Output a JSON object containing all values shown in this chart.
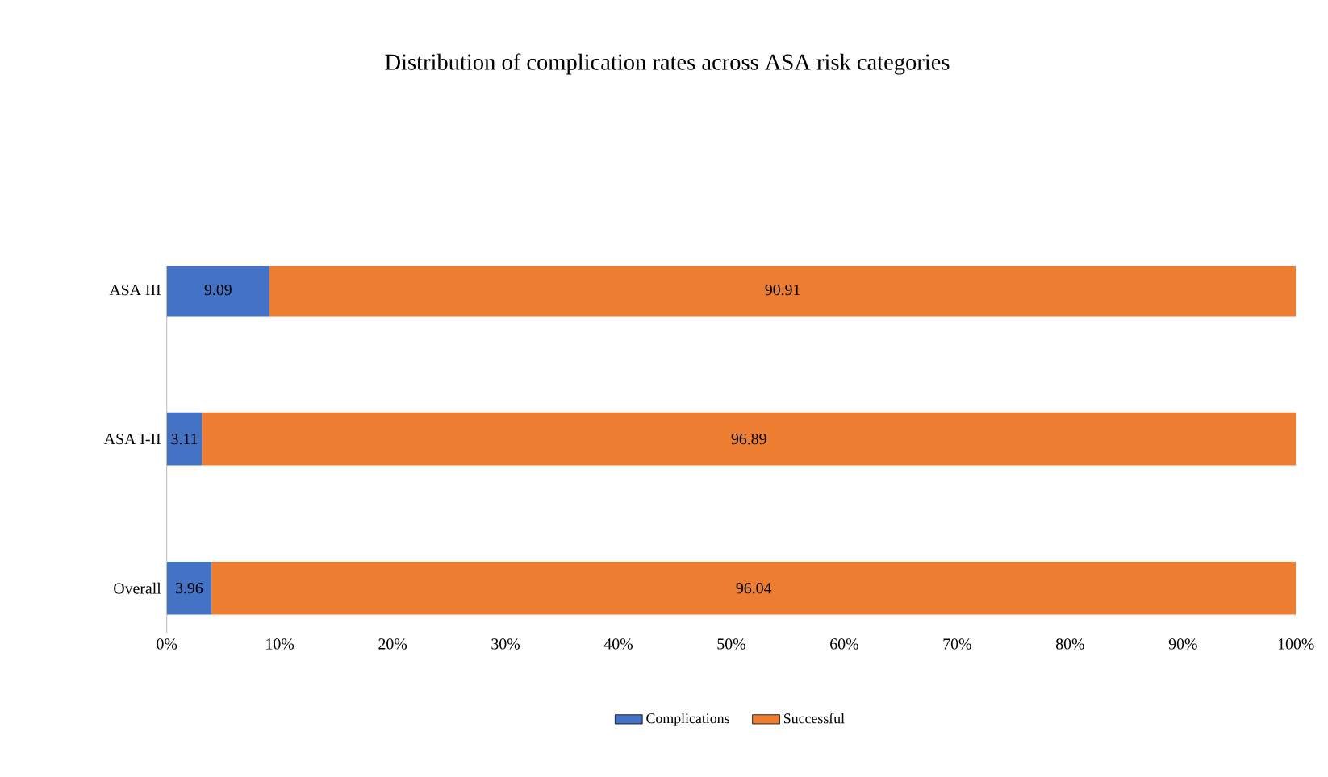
{
  "chart_data": {
    "type": "bar",
    "orientation": "horizontal",
    "stacked": true,
    "title": "Distribution of complication rates across ASA risk categories",
    "categories": [
      "ASA III",
      "ASA I-II",
      "Overall"
    ],
    "series": [
      {
        "name": "Complications",
        "color": "#4472c4",
        "values": [
          9.09,
          3.11,
          3.96
        ]
      },
      {
        "name": "Successful",
        "color": "#ed7d31",
        "values": [
          90.91,
          96.89,
          96.04
        ]
      }
    ],
    "xlim": [
      0,
      100
    ],
    "xticks": [
      {
        "value": 0,
        "label": "0%"
      },
      {
        "value": 10,
        "label": "10%"
      },
      {
        "value": 20,
        "label": "20%"
      },
      {
        "value": 30,
        "label": "30%"
      },
      {
        "value": 40,
        "label": "40%"
      },
      {
        "value": 50,
        "label": "50%"
      },
      {
        "value": 60,
        "label": "60%"
      },
      {
        "value": 70,
        "label": "70%"
      },
      {
        "value": 80,
        "label": "80%"
      },
      {
        "value": 90,
        "label": "90%"
      },
      {
        "value": 100,
        "label": "100%"
      }
    ],
    "data_labels": true,
    "legend": "bottom",
    "grid": false
  }
}
